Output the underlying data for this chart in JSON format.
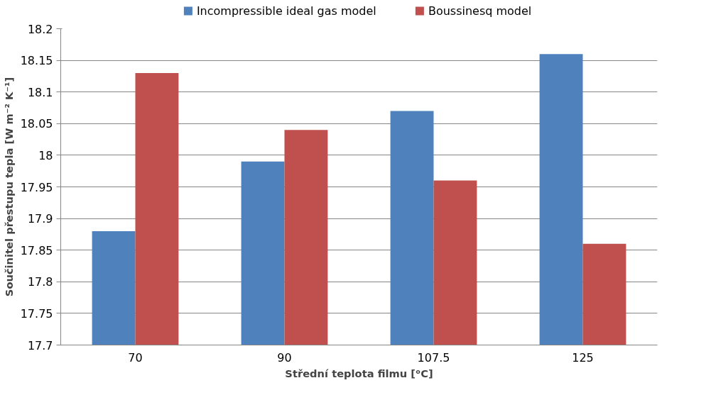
{
  "chart_data": {
    "type": "bar",
    "xlabel": "Střední teplota filmu [ᵒC]",
    "ylabel": "Součinitel přestupu tepla [W m⁻² K⁻¹]",
    "categories": [
      "70",
      "90",
      "107.5",
      "125"
    ],
    "series": [
      {
        "name": "Incompressible ideal gas model",
        "color": "#4f81bd",
        "values": [
          17.88,
          17.99,
          18.07,
          18.16
        ]
      },
      {
        "name": "Boussinesq model",
        "color": "#c0504d",
        "values": [
          18.13,
          18.04,
          17.96,
          17.86
        ]
      }
    ],
    "ylim": [
      17.7,
      18.2
    ],
    "yticks": [
      17.7,
      17.75,
      17.8,
      17.85,
      17.9,
      17.95,
      18,
      18.05,
      18.1,
      18.15,
      18.2
    ],
    "grid": "y",
    "legend": "top"
  }
}
